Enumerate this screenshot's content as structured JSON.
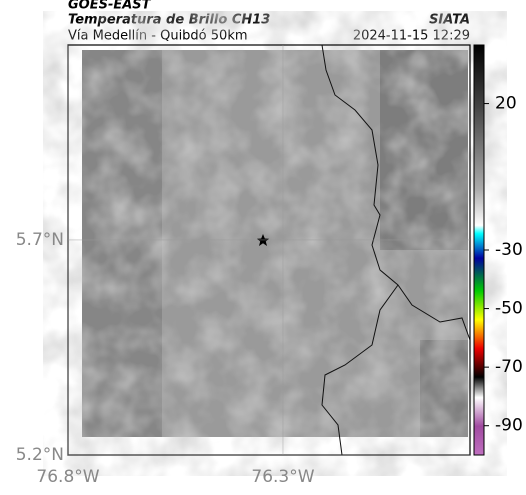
{
  "header": {
    "title": "GOES-EAST",
    "subtitle": "Temperatura de Brillo CH13",
    "region": "Vía Medellín - Quibdó 50km",
    "source": "SIATA",
    "timestamp": "2024-11-15 12:29"
  },
  "map": {
    "xlim": [
      -76.8,
      -75.865
    ],
    "ylim": [
      5.2,
      6.153
    ],
    "xticks": [
      {
        "value": -76.8,
        "label": "76.8°W"
      },
      {
        "value": -76.3,
        "label": "76.3°W"
      }
    ],
    "yticks": [
      {
        "value": 5.7,
        "label": "5.7°N"
      },
      {
        "value": 5.2,
        "label": "5.2°N"
      }
    ],
    "grid": true
  },
  "colorbar": {
    "clim": [
      -100,
      40
    ],
    "ticks": [
      20,
      -30,
      -50,
      -70,
      -90
    ]
  }
}
